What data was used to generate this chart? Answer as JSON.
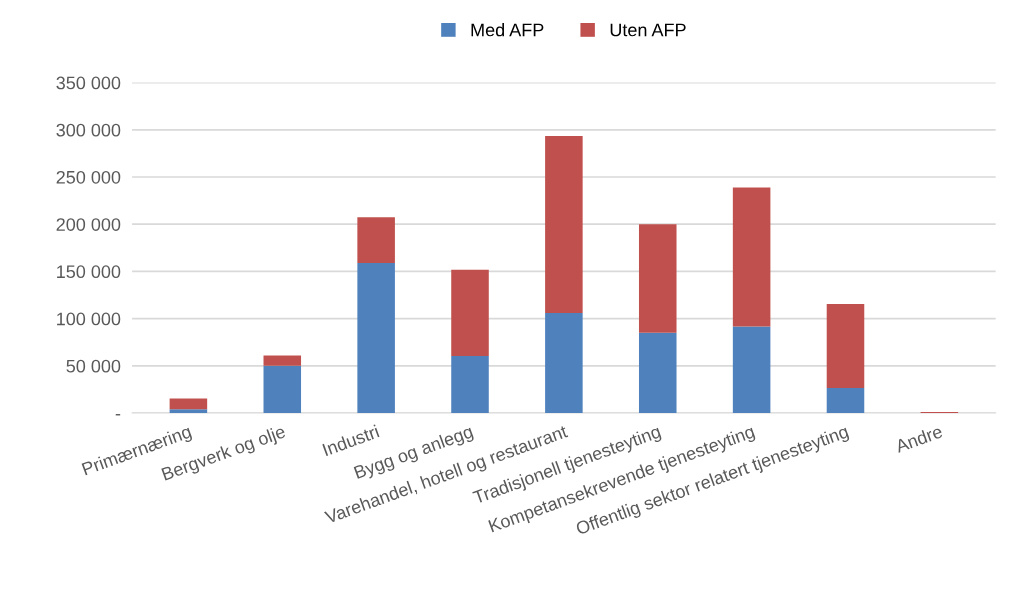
{
  "chart_data": {
    "type": "bar",
    "stacked": true,
    "categories": [
      "Primærnæring",
      "Bergverk og olje",
      "Industri",
      "Bygg og anlegg",
      "Varehandel, hotell og restaurant",
      "Tradisjonell tjenesteyting",
      "Kompetansekrevende tjenesteyting",
      "Offentlig sektor relatert tjenesteyting",
      "Andre"
    ],
    "series": [
      {
        "name": "Med AFP",
        "color": "#4f81bd",
        "values": [
          4000,
          50000,
          159000,
          60500,
          106000,
          85000,
          91500,
          26500,
          0
        ]
      },
      {
        "name": "Uten AFP",
        "color": "#c0504d",
        "values": [
          11300,
          11000,
          48300,
          91200,
          187500,
          115000,
          147500,
          89000,
          1000
        ]
      }
    ],
    "ylim": [
      0,
      350000
    ],
    "yticks": [
      {
        "value": 0,
        "label": "-"
      },
      {
        "value": 50000,
        "label": "50 000"
      },
      {
        "value": 100000,
        "label": "100 000"
      },
      {
        "value": 150000,
        "label": "150 000"
      },
      {
        "value": 200000,
        "label": "200 000"
      },
      {
        "value": 250000,
        "label": "250 000"
      },
      {
        "value": 300000,
        "label": "300 000"
      },
      {
        "value": 350000,
        "label": "350 000"
      }
    ],
    "grid": "y",
    "legend": "top"
  }
}
